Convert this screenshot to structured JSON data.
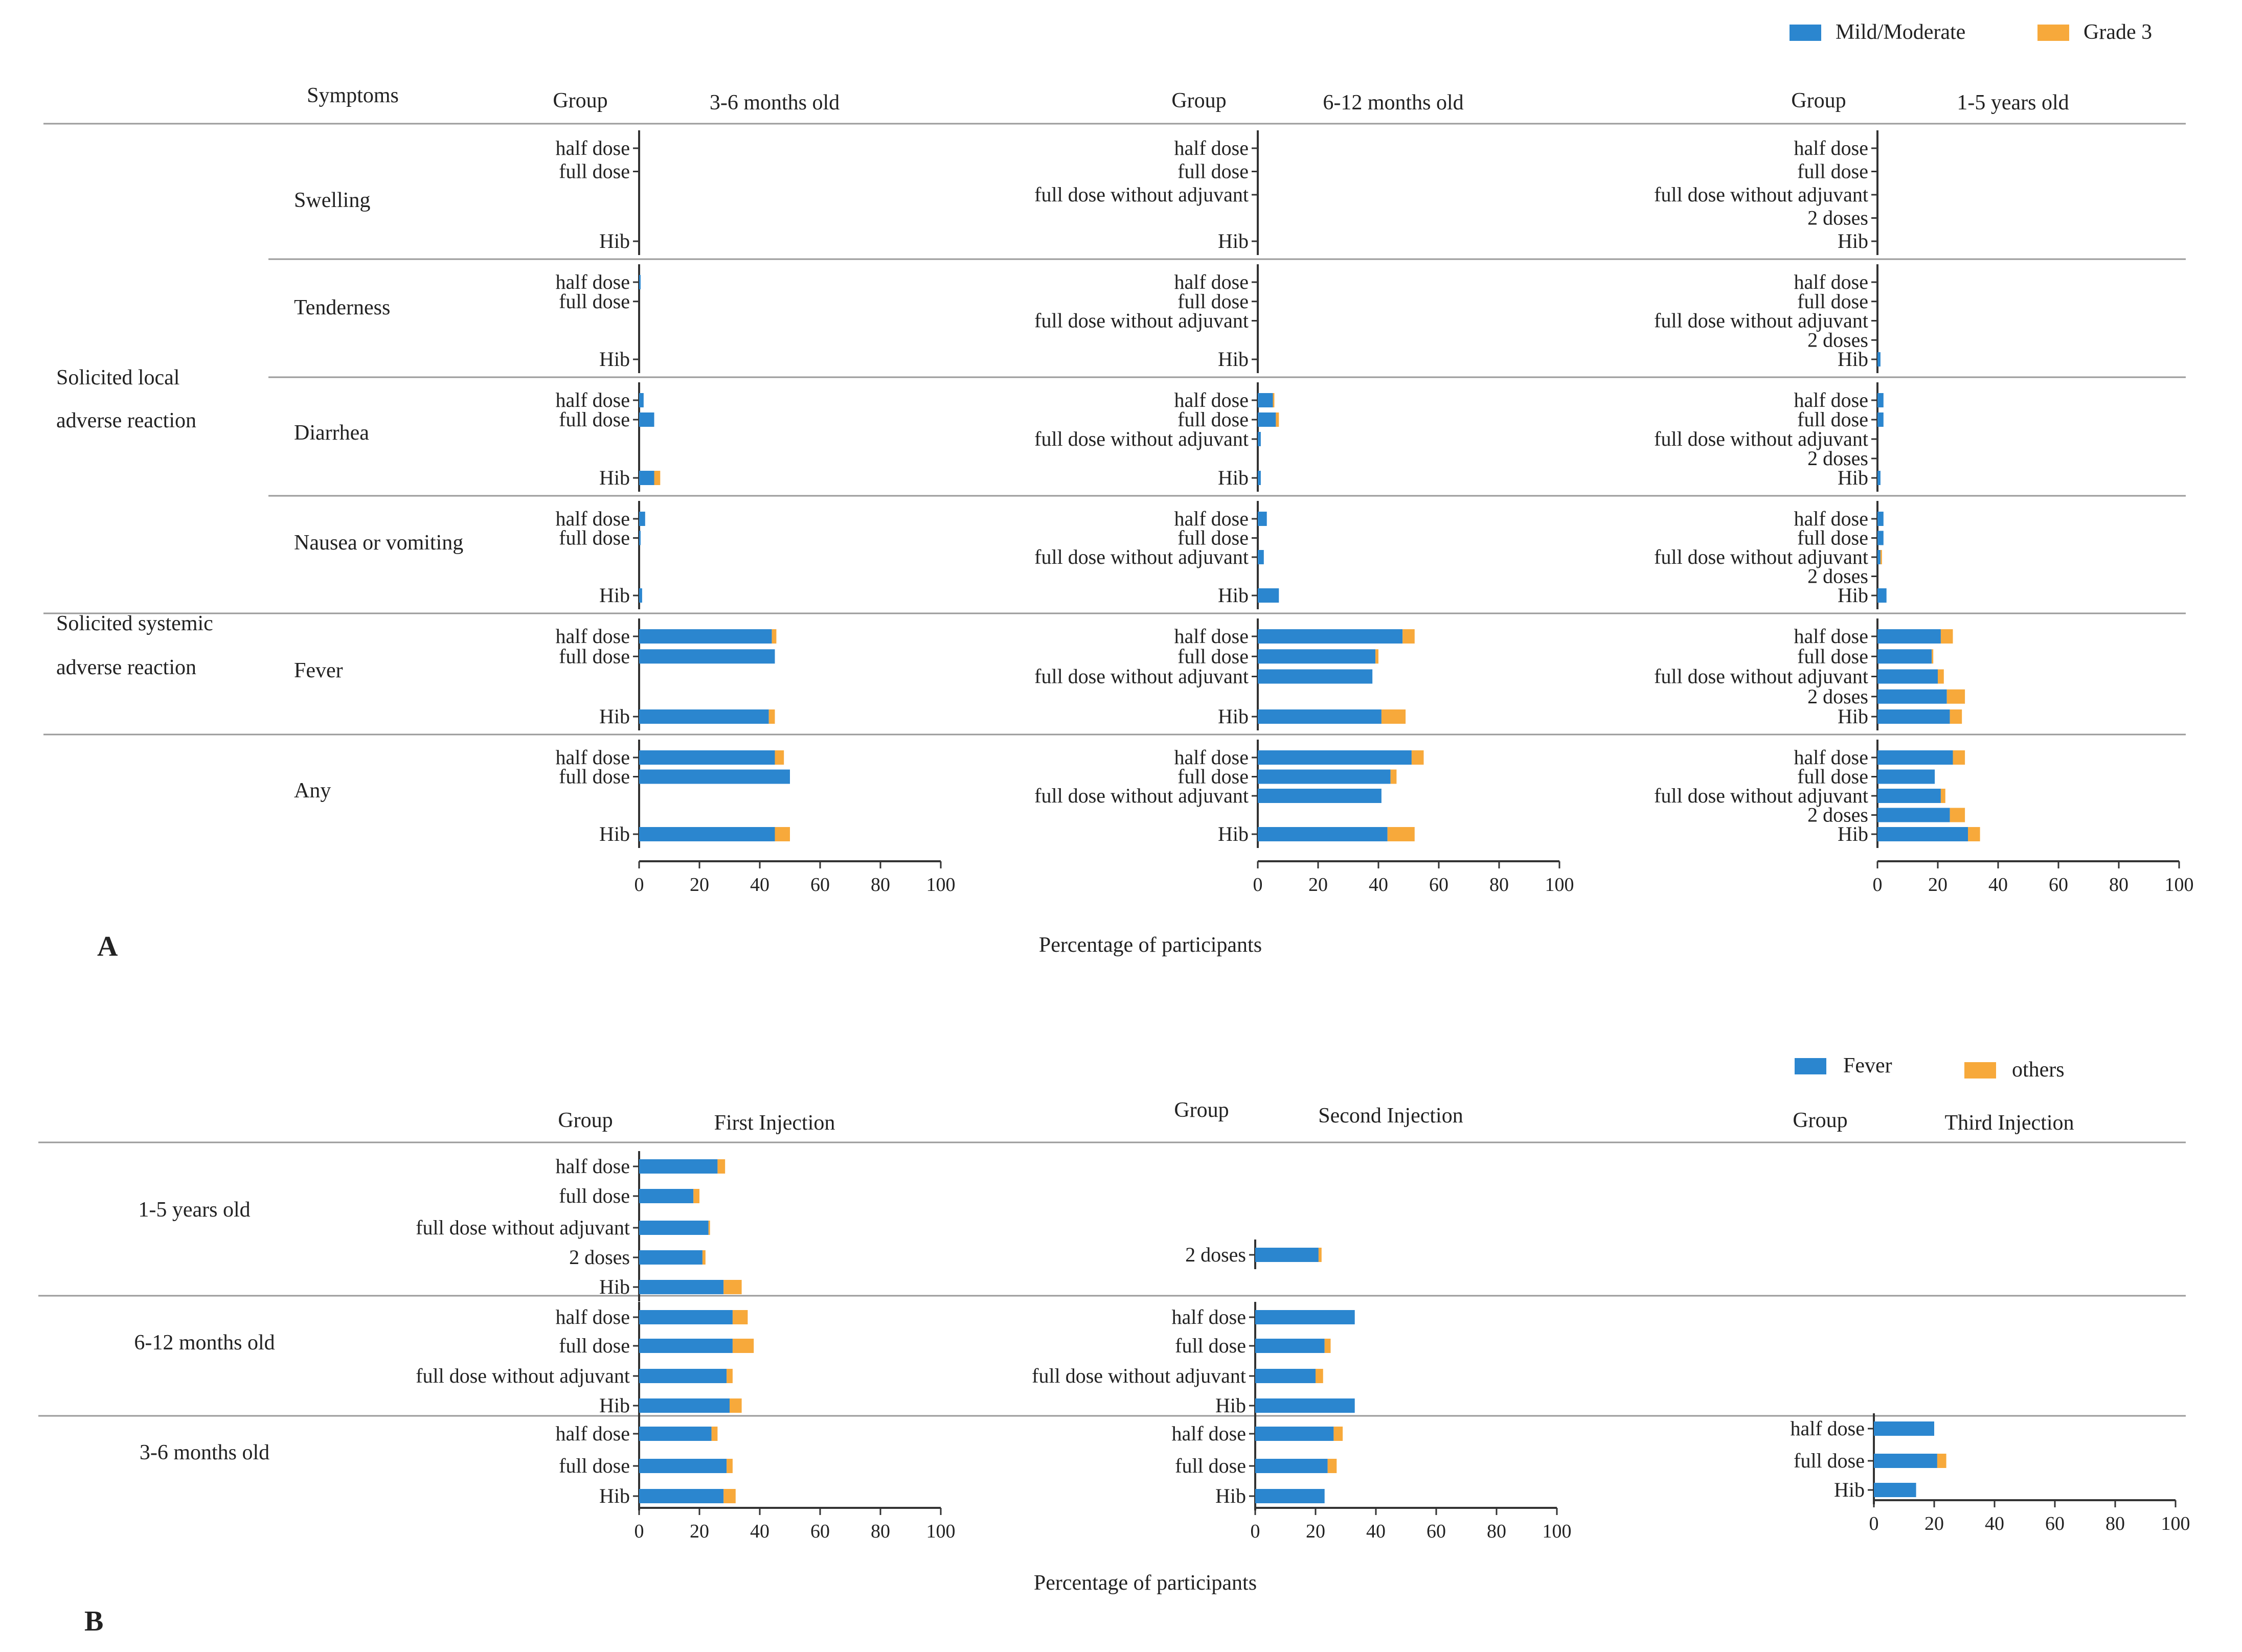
{
  "colors": {
    "blue": "#2B86CF",
    "orange": "#F7A93B",
    "axis": "#333333",
    "rule": "#9A9A9A"
  },
  "chart_data": [
    {
      "type": "bar",
      "panel": "A",
      "orientation": "horizontal-stacked",
      "xlabel": "Percentage of participants",
      "xlim": [
        0,
        100
      ],
      "xticks": [
        "0",
        "20",
        "40",
        "60",
        "80",
        "100"
      ],
      "legend": {
        "position": "top-right",
        "items": [
          "Mild/Moderate",
          "Grade 3"
        ]
      },
      "header": {
        "symptoms": "Symptoms",
        "group": "Group"
      },
      "columns": [
        "3-6 months old",
        "6-12 months old",
        "1-5 years old"
      ],
      "categories": {
        "3-6 months old": [
          "half dose",
          "full dose",
          "Hib"
        ],
        "6-12 months old": [
          "half dose",
          "full dose",
          "full dose without adjuvant",
          "Hib"
        ],
        "1-5 years old": [
          "half dose",
          "full dose",
          "full dose without adjuvant",
          "2 doses",
          "Hib"
        ]
      },
      "categories_positions": {
        "3-6 months old": [
          0,
          1,
          4
        ],
        "6-12 months old": [
          0,
          1,
          2,
          4
        ],
        "1-5 years old": [
          0,
          1,
          2,
          3,
          4
        ]
      },
      "reaction_types": [
        "Solicited local adverse reaction",
        "Solicited systemic adverse reaction"
      ],
      "reaction_type_rows": [
        [
          0,
          3
        ],
        [
          4,
          4
        ]
      ],
      "symptoms": [
        {
          "name": "Swelling",
          "values": {
            "3-6 months old": {
              "Mild/Moderate": [
                0,
                0,
                0
              ],
              "Grade 3": [
                0,
                0,
                0
              ]
            },
            "6-12 months old": {
              "Mild/Moderate": [
                0,
                0,
                0,
                0
              ],
              "Grade 3": [
                0,
                0,
                0,
                0
              ]
            },
            "1-5 years old": {
              "Mild/Moderate": [
                0,
                0,
                0,
                0,
                0
              ],
              "Grade 3": [
                0,
                0,
                0,
                0,
                0
              ]
            }
          }
        },
        {
          "name": "Tenderness",
          "values": {
            "3-6 months old": {
              "Mild/Moderate": [
                0.5,
                0,
                0
              ],
              "Grade 3": [
                0,
                0,
                0
              ]
            },
            "6-12 months old": {
              "Mild/Moderate": [
                0,
                0,
                0,
                0
              ],
              "Grade 3": [
                0,
                0,
                0,
                0
              ]
            },
            "1-5 years old": {
              "Mild/Moderate": [
                0,
                0,
                0,
                0,
                1
              ],
              "Grade 3": [
                0,
                0,
                0,
                0,
                0
              ]
            }
          }
        },
        {
          "name": "Diarrhea",
          "values": {
            "3-6 months old": {
              "Mild/Moderate": [
                1.5,
                5,
                5
              ],
              "Grade 3": [
                0,
                0,
                2
              ]
            },
            "6-12 months old": {
              "Mild/Moderate": [
                5,
                6,
                1,
                1
              ],
              "Grade 3": [
                0.5,
                1,
                0,
                0
              ]
            },
            "1-5 years old": {
              "Mild/Moderate": [
                2,
                2,
                0,
                0,
                1
              ],
              "Grade 3": [
                0,
                0,
                0,
                0,
                0
              ]
            }
          }
        },
        {
          "name": "Nausea or vomiting",
          "values": {
            "3-6 months old": {
              "Mild/Moderate": [
                2,
                0.5,
                1
              ],
              "Grade 3": [
                0,
                0,
                0
              ]
            },
            "6-12 months old": {
              "Mild/Moderate": [
                3,
                0,
                2,
                7
              ],
              "Grade 3": [
                0,
                0,
                0,
                0
              ]
            },
            "1-5 years old": {
              "Mild/Moderate": [
                2,
                2,
                1,
                0,
                3
              ],
              "Grade 3": [
                0,
                0,
                0.5,
                0,
                0
              ]
            }
          }
        },
        {
          "name": "Fever",
          "values": {
            "3-6 months old": {
              "Mild/Moderate": [
                44,
                45,
                43
              ],
              "Grade 3": [
                1.5,
                0,
                2
              ]
            },
            "6-12 months old": {
              "Mild/Moderate": [
                48,
                39,
                38,
                41
              ],
              "Grade 3": [
                4,
                1,
                0,
                8
              ]
            },
            "1-5 years old": {
              "Mild/Moderate": [
                21,
                18,
                20,
                23,
                24
              ],
              "Grade 3": [
                4,
                0.5,
                2,
                6,
                4
              ]
            }
          }
        },
        {
          "name": "Any",
          "values": {
            "3-6 months old": {
              "Mild/Moderate": [
                45,
                50,
                45
              ],
              "Grade 3": [
                3,
                0,
                5
              ]
            },
            "6-12 months old": {
              "Mild/Moderate": [
                51,
                44,
                41,
                43
              ],
              "Grade 3": [
                4,
                2,
                0,
                9
              ]
            },
            "1-5 years old": {
              "Mild/Moderate": [
                25,
                19,
                21,
                24,
                30
              ],
              "Grade 3": [
                4,
                0,
                1.5,
                5,
                4
              ]
            }
          }
        }
      ]
    },
    {
      "type": "bar",
      "panel": "B",
      "orientation": "horizontal-stacked",
      "xlabel": "Percentage of participants",
      "xlim": [
        0,
        100
      ],
      "xticks": [
        "0",
        "20",
        "40",
        "60",
        "80",
        "100"
      ],
      "legend": {
        "position": "top-right",
        "items": [
          "Fever",
          "others"
        ]
      },
      "header": {
        "group": "Group"
      },
      "columns": [
        "First Injection",
        "Second Injection",
        "Third Injection"
      ],
      "rows": [
        {
          "age": "1-5 years old",
          "cols": [
            {
              "labels": [
                "half dose",
                "full dose",
                "full dose without adjuvant",
                "2 doses",
                "Hib"
              ],
              "Fever": [
                26,
                18,
                23,
                21,
                28
              ],
              "others": [
                2.5,
                2,
                0.5,
                1,
                6
              ]
            },
            {
              "labels": [
                "2 doses"
              ],
              "Fever": [
                21
              ],
              "others": [
                1
              ]
            },
            {
              "labels": [],
              "Fever": [],
              "others": []
            }
          ]
        },
        {
          "age": "6-12 months old",
          "cols": [
            {
              "labels": [
                "half dose",
                "full dose",
                "full dose without adjuvant",
                "Hib"
              ],
              "Fever": [
                31,
                31,
                29,
                30
              ],
              "others": [
                5,
                7,
                2,
                4
              ]
            },
            {
              "labels": [
                "half dose",
                "full dose",
                "full dose without adjuvant",
                "Hib"
              ],
              "Fever": [
                33,
                23,
                20,
                33
              ],
              "others": [
                0,
                2,
                2.5,
                0
              ]
            },
            {
              "labels": [],
              "Fever": [],
              "others": []
            }
          ]
        },
        {
          "age": "3-6 months old",
          "cols": [
            {
              "labels": [
                "half dose",
                "full dose",
                "Hib"
              ],
              "Fever": [
                24,
                29,
                28
              ],
              "others": [
                2,
                2,
                4
              ]
            },
            {
              "labels": [
                "half dose",
                "full dose",
                "Hib"
              ],
              "Fever": [
                26,
                24,
                23
              ],
              "others": [
                3,
                3,
                0
              ]
            },
            {
              "labels": [
                "half dose",
                "full dose",
                "Hib"
              ],
              "Fever": [
                20,
                21,
                14
              ],
              "others": [
                0,
                3,
                0
              ]
            }
          ]
        }
      ]
    }
  ]
}
